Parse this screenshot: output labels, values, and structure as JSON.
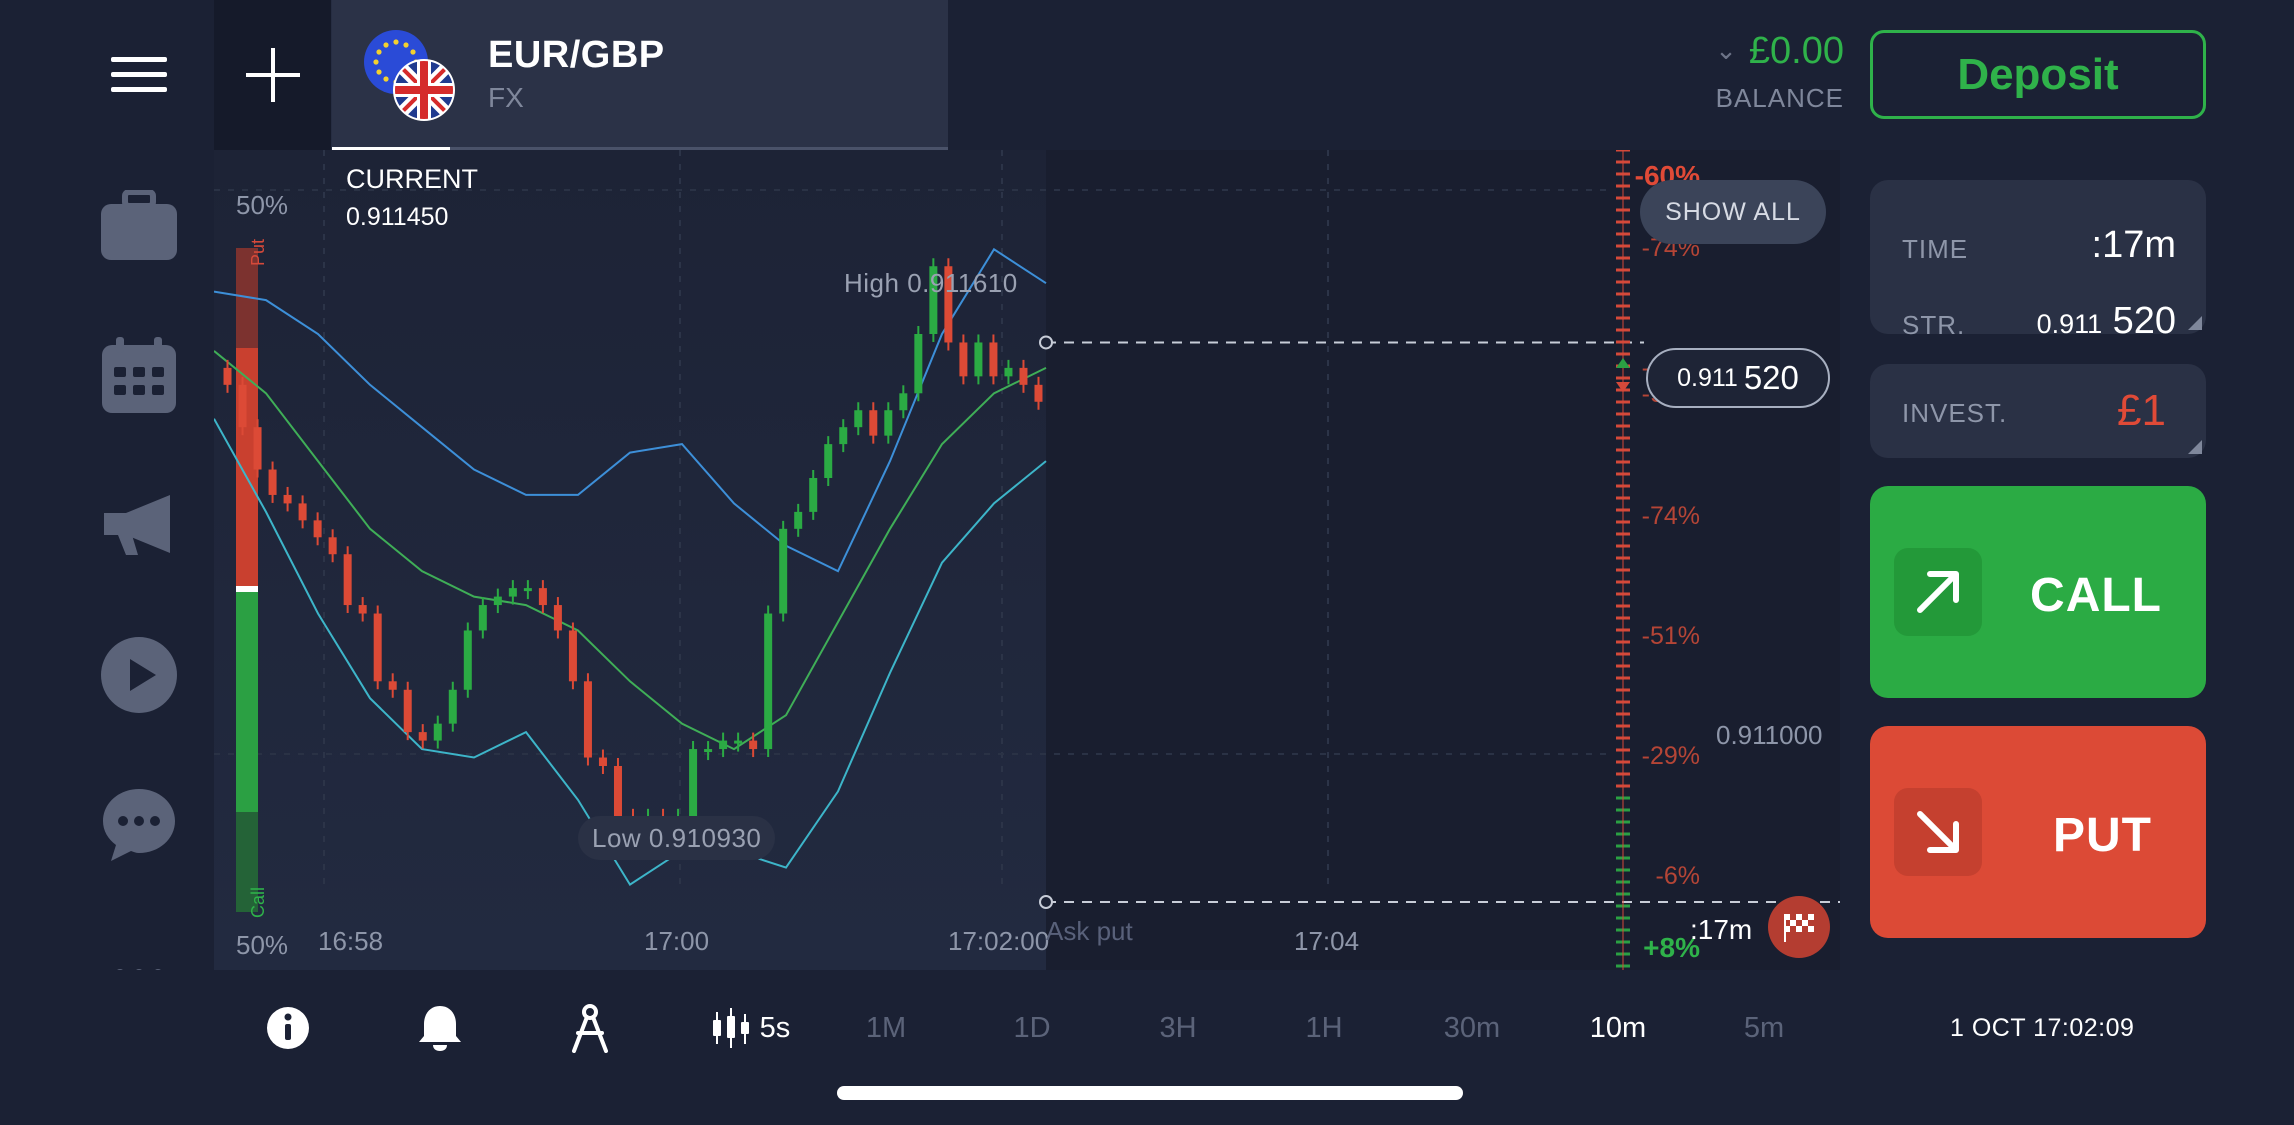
{
  "header": {
    "asset_name": "EUR/GBP",
    "asset_type": "FX",
    "balance_amount": "£0.00",
    "balance_label": "BALANCE",
    "deposit_label": "Deposit"
  },
  "sidebar": {
    "items": [
      "menu-icon",
      "portfolio-icon",
      "calendar-icon",
      "megaphone-icon",
      "play-icon",
      "chat-icon",
      "more-icon"
    ]
  },
  "chart": {
    "current_label": "CURRENT",
    "current_value": "0.911450",
    "pct_top": "50%",
    "pct_bottom": "50%",
    "put_label": "Put",
    "call_label": "Call",
    "high_label": "High  0.911610",
    "low_label": "Low  0.910930",
    "time_labels": [
      "16:58",
      "17:00",
      "17:02:00",
      "17:04"
    ],
    "payouts": [
      "-60%",
      "-74%",
      "-97%",
      "-97%",
      "-74%",
      "-51%",
      "-29%",
      "-6%",
      "+8%"
    ],
    "show_all": "SHOW ALL",
    "strike_small": "0.911",
    "strike_big": "520",
    "price_level": "0.911000",
    "ask_put": "Ask put",
    "expiry_label": ":17m",
    "colors": {
      "up": "#2bab44",
      "down": "#dc4a36",
      "bollinger": "#3d8fd8",
      "ma": "#3fae57"
    }
  },
  "chart_data": {
    "type": "candlestick",
    "xlabel": "",
    "ylabel": "",
    "ylim": [
      0.91085,
      0.9117
    ],
    "x_ticks": [
      "16:58",
      "17:00",
      "17:02:00",
      "17:04"
    ],
    "high": 0.91161,
    "low": 0.91093,
    "current": 0.91145,
    "strike": 0.91152,
    "candles": [
      [
        0.91149,
        0.91147
      ],
      [
        0.91147,
        0.91142
      ],
      [
        0.91142,
        0.91137
      ],
      [
        0.91137,
        0.91134
      ],
      [
        0.91134,
        0.91133
      ],
      [
        0.91133,
        0.91131
      ],
      [
        0.91131,
        0.91129
      ],
      [
        0.91129,
        0.91127
      ],
      [
        0.91127,
        0.91121
      ],
      [
        0.91121,
        0.9112
      ],
      [
        0.9112,
        0.91112
      ],
      [
        0.91112,
        0.91111
      ],
      [
        0.91111,
        0.91106
      ],
      [
        0.91106,
        0.91105
      ],
      [
        0.91105,
        0.91107
      ],
      [
        0.91107,
        0.91111
      ],
      [
        0.91111,
        0.91118
      ],
      [
        0.91118,
        0.91121
      ],
      [
        0.91121,
        0.91122
      ],
      [
        0.91122,
        0.91123
      ],
      [
        0.91123,
        0.91123
      ],
      [
        0.91123,
        0.91121
      ],
      [
        0.91121,
        0.91118
      ],
      [
        0.91118,
        0.91112
      ],
      [
        0.91112,
        0.91103
      ],
      [
        0.91103,
        0.91102
      ],
      [
        0.91102,
        0.91096
      ],
      [
        0.91096,
        0.91095
      ],
      [
        0.91095,
        0.91096
      ],
      [
        0.91096,
        0.91094
      ],
      [
        0.91094,
        0.91096
      ],
      [
        0.91096,
        0.91104
      ],
      [
        0.91104,
        0.91104
      ],
      [
        0.91104,
        0.91105
      ],
      [
        0.91105,
        0.91105
      ],
      [
        0.91105,
        0.91104
      ],
      [
        0.91104,
        0.9112
      ],
      [
        0.9112,
        0.9113
      ],
      [
        0.9113,
        0.91132
      ],
      [
        0.91132,
        0.91136
      ],
      [
        0.91136,
        0.9114
      ],
      [
        0.9114,
        0.91142
      ],
      [
        0.91142,
        0.91144
      ],
      [
        0.91144,
        0.91141
      ],
      [
        0.91141,
        0.91144
      ],
      [
        0.91144,
        0.91146
      ],
      [
        0.91146,
        0.91153
      ],
      [
        0.91153,
        0.91161
      ],
      [
        0.91161,
        0.91152
      ],
      [
        0.91152,
        0.91148
      ],
      [
        0.91148,
        0.91152
      ],
      [
        0.91152,
        0.91148
      ],
      [
        0.91148,
        0.91149
      ],
      [
        0.91149,
        0.91147
      ],
      [
        0.91147,
        0.91145
      ]
    ],
    "series": [
      {
        "name": "upper band",
        "values": [
          0.91158,
          0.91157,
          0.91153,
          0.91147,
          0.91142,
          0.91137,
          0.91134,
          0.91134,
          0.91139,
          0.9114,
          0.91133,
          0.91128,
          0.91125,
          0.91138,
          0.91153,
          0.91163,
          0.91159
        ]
      },
      {
        "name": "middle",
        "values": [
          0.91151,
          0.91146,
          0.91138,
          0.9113,
          0.91125,
          0.91122,
          0.91121,
          0.91118,
          0.91112,
          0.91107,
          0.91104,
          0.91108,
          0.91119,
          0.9113,
          0.9114,
          0.91146,
          0.91149
        ]
      },
      {
        "name": "lower band",
        "values": [
          0.91143,
          0.91132,
          0.9112,
          0.9111,
          0.91104,
          0.91103,
          0.91106,
          0.91098,
          0.91088,
          0.91092,
          0.91092,
          0.9109,
          0.91099,
          0.91113,
          0.91126,
          0.91133,
          0.91138
        ]
      }
    ]
  },
  "panel": {
    "time_label": "TIME",
    "time_value": ":17m",
    "strike_label": "STR.",
    "strike_small": "0.911",
    "strike_big": "520",
    "invest_label": "INVEST.",
    "invest_value": "£1",
    "call_label": "CALL",
    "put_label": "PUT"
  },
  "bottombar": {
    "candle_interval": "5s",
    "timeframes": [
      "1M",
      "1D",
      "3H",
      "1H",
      "30m",
      "10m",
      "5m"
    ],
    "active_timeframe": "10m",
    "datetime": "1 OCT 17:02:09"
  }
}
